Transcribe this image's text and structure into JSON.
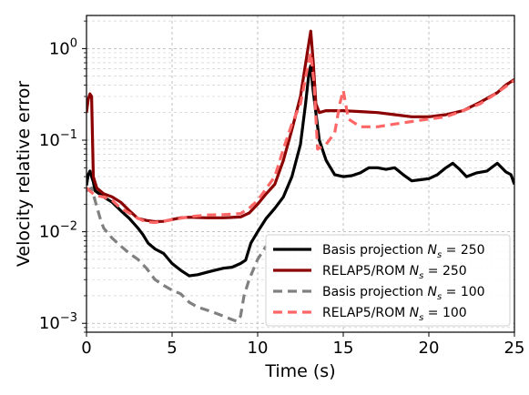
{
  "chart_data": {
    "type": "line",
    "xlabel": "Time (s)",
    "ylabel": "Velocity relative error",
    "xlim": [
      0,
      25
    ],
    "ylim": [
      0.0008,
      2.3
    ],
    "yscale": "log",
    "grid": true,
    "legend_position": "bottom-right",
    "x_ticks": [
      {
        "value": 0,
        "label": "0"
      },
      {
        "value": 5,
        "label": "5"
      },
      {
        "value": 10,
        "label": "10"
      },
      {
        "value": 15,
        "label": "15"
      },
      {
        "value": 20,
        "label": "20"
      },
      {
        "value": 25,
        "label": "25"
      }
    ],
    "y_ticks": [
      {
        "value": 0.001,
        "base": "10",
        "exp": "−3"
      },
      {
        "value": 0.01,
        "base": "10",
        "exp": "−2"
      },
      {
        "value": 0.1,
        "base": "10",
        "exp": "−1"
      },
      {
        "value": 1,
        "base": "10",
        "exp": "0"
      }
    ],
    "series": [
      {
        "name": "Basis projection N_s = 250",
        "legend": {
          "prefix": "Basis projection ",
          "sym": "N",
          "sub": "s",
          "suffix": " = 250"
        },
        "color": "#000000",
        "dash": "solid",
        "points": [
          [
            0,
            0.032
          ],
          [
            0.1,
            0.042
          ],
          [
            0.2,
            0.046
          ],
          [
            0.3,
            0.04
          ],
          [
            0.4,
            0.035
          ],
          [
            0.5,
            0.028
          ],
          [
            1,
            0.024
          ],
          [
            1.5,
            0.021
          ],
          [
            2,
            0.017
          ],
          [
            2.5,
            0.014
          ],
          [
            3,
            0.011
          ],
          [
            3.3,
            0.0093
          ],
          [
            3.6,
            0.0075
          ],
          [
            4,
            0.0065
          ],
          [
            4.5,
            0.0058
          ],
          [
            5,
            0.0045
          ],
          [
            5.5,
            0.0038
          ],
          [
            6,
            0.0033
          ],
          [
            6.5,
            0.0034
          ],
          [
            7,
            0.0036
          ],
          [
            7.5,
            0.0038
          ],
          [
            8,
            0.004
          ],
          [
            8.5,
            0.0041
          ],
          [
            9,
            0.0045
          ],
          [
            9.3,
            0.0049
          ],
          [
            9.6,
            0.0075
          ],
          [
            10,
            0.01
          ],
          [
            10.5,
            0.014
          ],
          [
            11,
            0.018
          ],
          [
            11.5,
            0.024
          ],
          [
            12,
            0.04
          ],
          [
            12.5,
            0.09
          ],
          [
            12.8,
            0.25
          ],
          [
            13,
            0.55
          ],
          [
            13.1,
            0.65
          ],
          [
            13.2,
            0.4
          ],
          [
            13.4,
            0.2
          ],
          [
            13.6,
            0.1
          ],
          [
            14,
            0.06
          ],
          [
            14.5,
            0.042
          ],
          [
            15,
            0.04
          ],
          [
            15.5,
            0.041
          ],
          [
            16,
            0.044
          ],
          [
            16.5,
            0.05
          ],
          [
            17,
            0.05
          ],
          [
            17.5,
            0.048
          ],
          [
            18,
            0.05
          ],
          [
            18.5,
            0.042
          ],
          [
            19,
            0.036
          ],
          [
            19.5,
            0.037
          ],
          [
            20,
            0.038
          ],
          [
            20.5,
            0.042
          ],
          [
            21,
            0.05
          ],
          [
            21.4,
            0.056
          ],
          [
            21.8,
            0.048
          ],
          [
            22.2,
            0.04
          ],
          [
            22.8,
            0.044
          ],
          [
            23.4,
            0.046
          ],
          [
            24,
            0.056
          ],
          [
            24.5,
            0.045
          ],
          [
            24.8,
            0.042
          ],
          [
            25,
            0.033
          ]
        ]
      },
      {
        "name": "RELAP5/ROM N_s = 250",
        "legend": {
          "prefix": "RELAP5/ROM ",
          "sym": "N",
          "sub": "s",
          "suffix": " = 250"
        },
        "color": "#8b0000",
        "dash": "solid",
        "points": [
          [
            0,
            0.2
          ],
          [
            0.1,
            0.28
          ],
          [
            0.2,
            0.32
          ],
          [
            0.3,
            0.3
          ],
          [
            0.4,
            0.04
          ],
          [
            0.6,
            0.03
          ],
          [
            1,
            0.026
          ],
          [
            1.5,
            0.024
          ],
          [
            2,
            0.021
          ],
          [
            2.5,
            0.017
          ],
          [
            3,
            0.014
          ],
          [
            3.5,
            0.0133
          ],
          [
            4,
            0.0129
          ],
          [
            4.5,
            0.013
          ],
          [
            5,
            0.0136
          ],
          [
            5.5,
            0.0142
          ],
          [
            6,
            0.0144
          ],
          [
            7,
            0.0142
          ],
          [
            8,
            0.0142
          ],
          [
            9,
            0.0145
          ],
          [
            9.5,
            0.016
          ],
          [
            10,
            0.02
          ],
          [
            10.5,
            0.026
          ],
          [
            11,
            0.033
          ],
          [
            11.5,
            0.06
          ],
          [
            12,
            0.13
          ],
          [
            12.5,
            0.3
          ],
          [
            12.9,
            0.9
          ],
          [
            13.1,
            1.55
          ],
          [
            13.25,
            0.7
          ],
          [
            13.4,
            0.25
          ],
          [
            13.6,
            0.2
          ],
          [
            14,
            0.21
          ],
          [
            15,
            0.21
          ],
          [
            16,
            0.205
          ],
          [
            17,
            0.2
          ],
          [
            18,
            0.19
          ],
          [
            19,
            0.18
          ],
          [
            20,
            0.18
          ],
          [
            21,
            0.19
          ],
          [
            22,
            0.21
          ],
          [
            23,
            0.26
          ],
          [
            24,
            0.33
          ],
          [
            24.5,
            0.4
          ],
          [
            25,
            0.46
          ]
        ]
      },
      {
        "name": "Basis projection N_s = 100",
        "legend": {
          "prefix": "Basis projection ",
          "sym": "N",
          "sub": "s",
          "suffix": " = 100"
        },
        "color": "#808080",
        "dash": "10,6",
        "points": [
          [
            0,
            0.028
          ],
          [
            0.3,
            0.03
          ],
          [
            0.5,
            0.022
          ],
          [
            0.8,
            0.014
          ],
          [
            1,
            0.011
          ],
          [
            1.5,
            0.0085
          ],
          [
            2,
            0.007
          ],
          [
            2.5,
            0.0058
          ],
          [
            3,
            0.005
          ],
          [
            3.5,
            0.004
          ],
          [
            4,
            0.003
          ],
          [
            4.5,
            0.0026
          ],
          [
            5,
            0.0023
          ],
          [
            5.5,
            0.0021
          ],
          [
            6,
            0.0017
          ],
          [
            6.5,
            0.0015
          ],
          [
            7,
            0.0014
          ],
          [
            7.5,
            0.0013
          ],
          [
            8,
            0.0012
          ],
          [
            8.5,
            0.0011
          ],
          [
            8.8,
            0.00105
          ],
          [
            9,
            0.0012
          ],
          [
            9.2,
            0.002
          ],
          [
            9.5,
            0.003
          ],
          [
            10,
            0.005
          ],
          [
            10.5,
            0.007
          ]
        ]
      },
      {
        "name": "RELAP5/ROM N_s = 100",
        "legend": {
          "prefix": "RELAP5/ROM ",
          "sym": "N",
          "sub": "s",
          "suffix": " = 100"
        },
        "color": "#ff6666",
        "dash": "10,6",
        "points": [
          [
            0,
            0.03
          ],
          [
            0.5,
            0.025
          ],
          [
            1,
            0.024
          ],
          [
            1.5,
            0.022
          ],
          [
            2,
            0.018
          ],
          [
            2.5,
            0.016
          ],
          [
            3,
            0.014
          ],
          [
            3.5,
            0.0128
          ],
          [
            4,
            0.0126
          ],
          [
            5,
            0.0135
          ],
          [
            6,
            0.0146
          ],
          [
            7,
            0.0152
          ],
          [
            8,
            0.0154
          ],
          [
            9,
            0.0158
          ],
          [
            9.5,
            0.018
          ],
          [
            10,
            0.022
          ],
          [
            11,
            0.04
          ],
          [
            11.5,
            0.08
          ],
          [
            12,
            0.15
          ],
          [
            12.5,
            0.25
          ],
          [
            12.9,
            0.6
          ],
          [
            13.1,
            0.9
          ],
          [
            13.3,
            0.4
          ],
          [
            13.5,
            0.08
          ],
          [
            14,
            0.09
          ],
          [
            14.5,
            0.12
          ],
          [
            14.8,
            0.25
          ],
          [
            15,
            0.35
          ],
          [
            15.3,
            0.17
          ],
          [
            16,
            0.14
          ],
          [
            17,
            0.14
          ],
          [
            18,
            0.15
          ],
          [
            19,
            0.16
          ],
          [
            20,
            0.17
          ],
          [
            21,
            0.18
          ],
          [
            22,
            0.21
          ],
          [
            23,
            0.25
          ],
          [
            24,
            0.33
          ],
          [
            25,
            0.45
          ]
        ]
      }
    ]
  }
}
